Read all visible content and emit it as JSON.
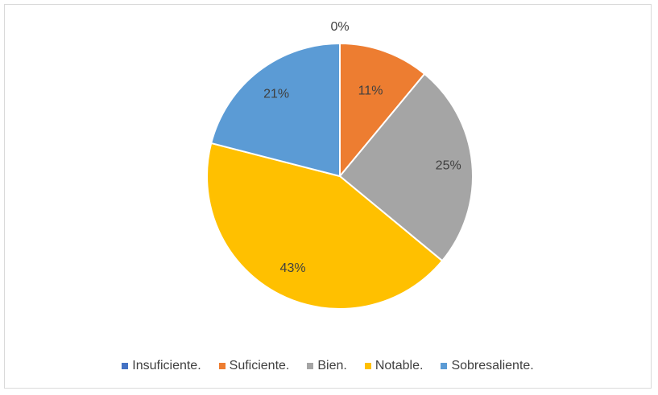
{
  "chart_data": {
    "type": "pie",
    "title": "",
    "categories": [
      "Insuficiente.",
      "Suficiente.",
      "Bien.",
      "Notable.",
      "Sobresaliente."
    ],
    "values": [
      0,
      11,
      25,
      43,
      21
    ],
    "labels": [
      "0%",
      "11%",
      "25%",
      "43%",
      "21%"
    ],
    "colors": [
      "#4472c4",
      "#ed7d31",
      "#a5a5a5",
      "#ffc000",
      "#5b9bd5"
    ],
    "legend_position": "bottom",
    "start_angle": "top, clockwise"
  }
}
